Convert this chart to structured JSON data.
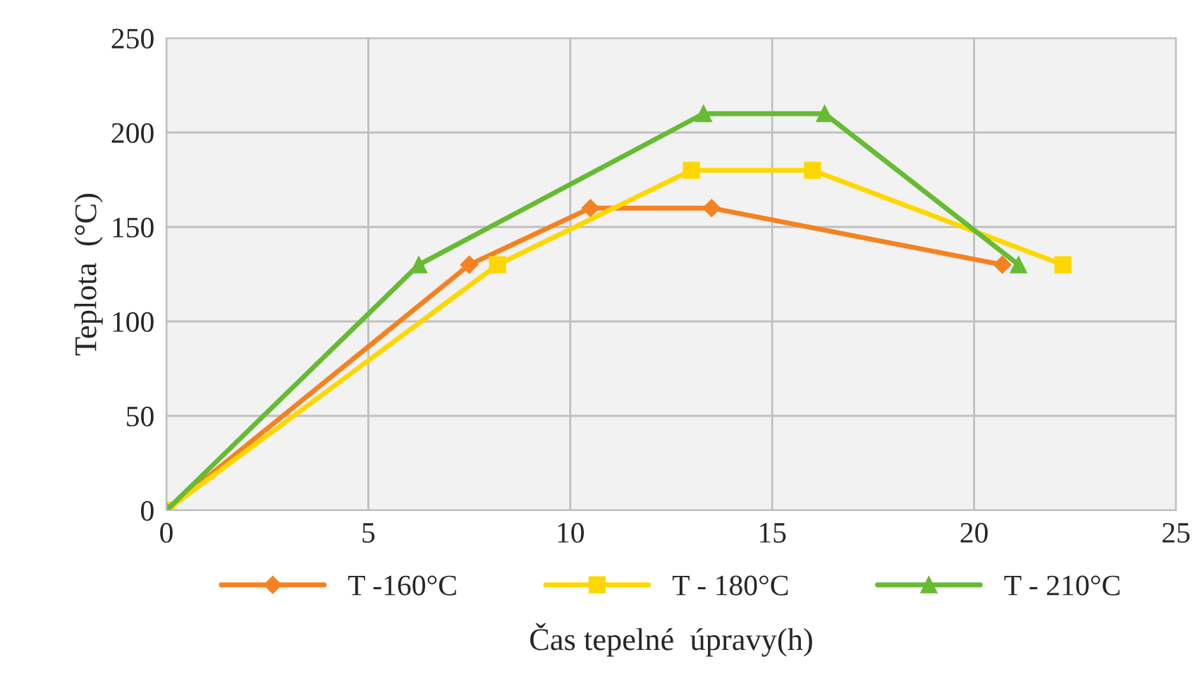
{
  "chart_data": {
    "type": "line",
    "xlabel": "Čas tepelné  úpravy(h)",
    "ylabel": "Teplota  (°C)",
    "xlim": [
      0,
      25
    ],
    "xticks": [
      0,
      5,
      10,
      15,
      20,
      25
    ],
    "ylim": [
      0,
      250
    ],
    "yticks": [
      0,
      50,
      100,
      150,
      200,
      250
    ],
    "grid": true,
    "legend": "bottom",
    "line_style": "solid",
    "series": [
      {
        "name": "T -160°C",
        "color": "#f58220",
        "marker": "diamond",
        "x": [
          0,
          7.5,
          10.5,
          13.5,
          20.7
        ],
        "values": [
          0,
          130,
          160,
          160,
          130
        ]
      },
      {
        "name": "T - 180°C",
        "color": "#ffd700",
        "marker": "square",
        "x": [
          0,
          8.2,
          13.0,
          16.0,
          22.2
        ],
        "values": [
          0,
          130,
          180,
          180,
          130
        ]
      },
      {
        "name": "T - 210°C",
        "color": "#66bb33",
        "marker": "triangle",
        "x": [
          0,
          6.25,
          13.3,
          16.3,
          21.1
        ],
        "values": [
          0,
          130,
          210,
          210,
          130
        ]
      }
    ]
  }
}
